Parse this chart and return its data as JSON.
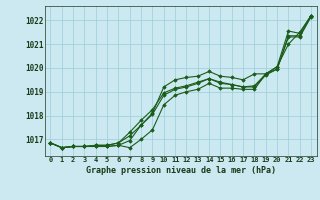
{
  "title": "Graphe pression niveau de la mer (hPa)",
  "background_color": "#cce8f0",
  "grid_color": "#99cdd8",
  "line_color": "#1a5c1a",
  "ylim": [
    1016.3,
    1022.6
  ],
  "yticks": [
    1017,
    1018,
    1019,
    1020,
    1021,
    1022
  ],
  "x_labels": [
    "0",
    "1",
    "2",
    "3",
    "4",
    "5",
    "6",
    "7",
    "8",
    "9",
    "10",
    "11",
    "12",
    "13",
    "14",
    "15",
    "16",
    "17",
    "18",
    "19",
    "20",
    "21",
    "22",
    "23"
  ],
  "series": [
    [
      1016.85,
      1016.65,
      1016.7,
      1016.7,
      1016.7,
      1016.7,
      1016.75,
      1016.65,
      1017.0,
      1017.4,
      1018.45,
      1018.85,
      1019.0,
      1019.1,
      1019.35,
      1019.15,
      1019.15,
      1019.1,
      1019.1,
      1019.75,
      1020.05,
      1021.55,
      1021.45,
      1022.2
    ],
    [
      1016.85,
      1016.65,
      1016.7,
      1016.7,
      1016.75,
      1016.75,
      1016.85,
      1017.15,
      1017.6,
      1018.05,
      1018.85,
      1019.1,
      1019.2,
      1019.35,
      1019.55,
      1019.35,
      1019.3,
      1019.2,
      1019.2,
      1019.7,
      1019.95,
      1021.35,
      1021.35,
      1022.2
    ],
    [
      1016.85,
      1016.65,
      1016.7,
      1016.7,
      1016.75,
      1016.75,
      1016.85,
      1017.3,
      1017.8,
      1018.25,
      1018.95,
      1019.15,
      1019.25,
      1019.4,
      1019.55,
      1019.4,
      1019.3,
      1019.2,
      1019.25,
      1019.75,
      1019.95,
      1021.3,
      1021.3,
      1022.15
    ],
    [
      1016.85,
      1016.65,
      1016.7,
      1016.7,
      1016.7,
      1016.7,
      1016.75,
      1016.95,
      1017.6,
      1018.1,
      1019.2,
      1019.5,
      1019.6,
      1019.65,
      1019.85,
      1019.65,
      1019.6,
      1019.5,
      1019.75,
      1019.75,
      1020.05,
      1021.0,
      1021.5,
      1022.2
    ]
  ]
}
